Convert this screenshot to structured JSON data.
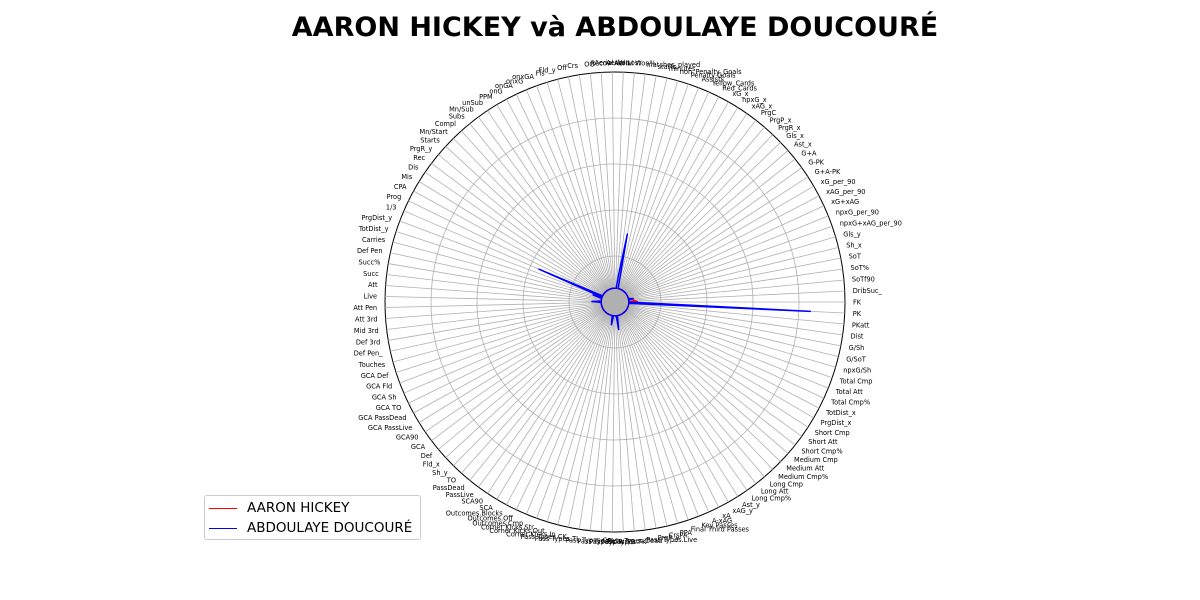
{
  "chart_data": {
    "type": "radar",
    "title": "AARON HICKEY và ABDOULAYE DOUCOURÉ",
    "legend_position": "lower-left",
    "grid": true,
    "rlim": [
      0,
      1
    ],
    "axes": [
      "FK",
      "DribSuc_",
      "SoTf90",
      "SoT%",
      "SoT",
      "Sh_x",
      "Gls_y",
      "npxG+xAG_per_90",
      "npxG_per_90",
      "xG+xAG",
      "xAG_per_90",
      "xG_per_90",
      "G+A-PK",
      "G-PK",
      "G+A",
      "Ast_x",
      "Gls_x",
      "PrgR_x",
      "PrgP_x",
      "PrgC",
      "xAG_x",
      "npxG_x",
      "xG_x",
      "Red_Cards",
      "Yellow_Cards",
      "Assists",
      "Penalty Goals",
      "non_Penalty_Goals",
      "minutes",
      "starts",
      "matches_played",
      "Aerial Won%",
      "Aerial Lost",
      "Aerial Won",
      "Recov",
      "OG",
      "Crs",
      "Off",
      "Fld_y",
      "Fls",
      "onxGA",
      "onxG",
      "onGA",
      "onG",
      "PPM",
      "unSub",
      "Mn/Sub",
      "Subs",
      "Compl",
      "Mn/Start",
      "Starts",
      "PrgR_y",
      "Rec",
      "Dis",
      "Mis",
      "CPA",
      "Prog",
      "1/3",
      "PrgDist_y",
      "TotDist_y",
      "Carries",
      "Def Pen",
      "Succ%",
      "Succ",
      "Att",
      "Live",
      "Att Pen",
      "Att 3rd",
      "Mid 3rd",
      "Def 3rd",
      "Def Pen_",
      "Touches",
      "GCA Def",
      "GCA Fld",
      "GCA Sh",
      "GCA TO",
      "GCA PassDead",
      "GCA PassLive",
      "GCA90",
      "GCA",
      "Def",
      "Fld_x",
      "Sh_y",
      "TO",
      "PassDead",
      "PassLive",
      "SCA90",
      "SCA",
      "Outcomes.Blocks",
      "Outcomes.Off",
      "Outcomes.Cmp",
      "Corner Kicks.Str",
      "Corner Kicks.Out",
      "Corner Kicks.In",
      "Pass Types.CK",
      "Pass Types.TI",
      "Pass Types.Crs",
      "Pass Types.Sw",
      "Pass Types.TB",
      "Pass Types.FK",
      "Pass Types.Dead",
      "Pass Types.Live",
      "PrgP_y",
      "CrsPA",
      "PPA",
      "Final Third Passes",
      "Key Passes",
      "A-xAG",
      "xA",
      "xAG_y",
      "Ast_y",
      "Long Cmp%",
      "Long Att",
      "Long Cmp",
      "Medium Cmp%",
      "Medium Att",
      "Medium Cmp",
      "Short Cmp%",
      "Short Att",
      "Short Cmp",
      "PrgDist_x",
      "TotDist_x",
      "Total Cmp%",
      "Total Att",
      "Total Cmp",
      "npxG/Sh",
      "G/SoT",
      "G/Sh",
      "Dist",
      "PKatt",
      "PK"
    ],
    "series": [
      {
        "name": "AARON HICKEY",
        "color": "#ff0000",
        "values": [
          0.1,
          0.06,
          0.06,
          0.06,
          0.06,
          0.06,
          0.06,
          0.06,
          0.06,
          0.06,
          0.06,
          0.06,
          0.06,
          0.06,
          0.06,
          0.06,
          0.06,
          0.06,
          0.06,
          0.06,
          0.06,
          0.06,
          0.06,
          0.06,
          0.06,
          0.06,
          0.06,
          0.06,
          0.06,
          0.06,
          0.06,
          0.06,
          0.06,
          0.06,
          0.06,
          0.06,
          0.06,
          0.06,
          0.06,
          0.06,
          0.06,
          0.06,
          0.06,
          0.06,
          0.06,
          0.06,
          0.06,
          0.06,
          0.06,
          0.06,
          0.06,
          0.06,
          0.06,
          0.06,
          0.06,
          0.06,
          0.06,
          0.06,
          0.09,
          0.09,
          0.06,
          0.06,
          0.06,
          0.06,
          0.06,
          0.06,
          0.06,
          0.06,
          0.06,
          0.06,
          0.06,
          0.06,
          0.06,
          0.06,
          0.06,
          0.06,
          0.06,
          0.06,
          0.06,
          0.06,
          0.06,
          0.06,
          0.06,
          0.06,
          0.06,
          0.06,
          0.06,
          0.06,
          0.06,
          0.06,
          0.06,
          0.06,
          0.06,
          0.06,
          0.06,
          0.06,
          0.06,
          0.06,
          0.06,
          0.06,
          0.06,
          0.06,
          0.06,
          0.06,
          0.06,
          0.06,
          0.06,
          0.06,
          0.06,
          0.06,
          0.06,
          0.06,
          0.06,
          0.06,
          0.06,
          0.06,
          0.06,
          0.06,
          0.06,
          0.06,
          0.06,
          0.06,
          0.06,
          0.06,
          0.06,
          0.06,
          0.06,
          0.06,
          0.06,
          0.06,
          0.06,
          0.06,
          0.06,
          0.06,
          0.06,
          0.06,
          0.06,
          0.06
        ]
      },
      {
        "name": "ABDOULAYE DOUCOURÉ",
        "color": "#0000ff",
        "values": [
          0.06,
          0.06,
          0.06,
          0.06,
          0.06,
          0.06,
          0.06,
          0.06,
          0.06,
          0.06,
          0.06,
          0.06,
          0.06,
          0.06,
          0.06,
          0.06,
          0.06,
          0.06,
          0.06,
          0.06,
          0.06,
          0.06,
          0.06,
          0.06,
          0.06,
          0.06,
          0.06,
          0.06,
          0.06,
          0.3,
          0.12,
          0.06,
          0.06,
          0.06,
          0.06,
          0.06,
          0.06,
          0.06,
          0.06,
          0.06,
          0.06,
          0.06,
          0.06,
          0.06,
          0.06,
          0.06,
          0.06,
          0.06,
          0.06,
          0.06,
          0.06,
          0.06,
          0.06,
          0.06,
          0.06,
          0.06,
          0.06,
          0.36,
          0.06,
          0.1,
          0.06,
          0.06,
          0.06,
          0.06,
          0.06,
          0.1,
          0.06,
          0.06,
          0.06,
          0.06,
          0.06,
          0.06,
          0.06,
          0.06,
          0.06,
          0.06,
          0.06,
          0.06,
          0.06,
          0.06,
          0.06,
          0.06,
          0.06,
          0.06,
          0.06,
          0.06,
          0.06,
          0.06,
          0.06,
          0.06,
          0.06,
          0.06,
          0.06,
          0.06,
          0.06,
          0.1,
          0.06,
          0.06,
          0.06,
          0.06,
          0.06,
          0.12,
          0.06,
          0.06,
          0.06,
          0.06,
          0.06,
          0.06,
          0.06,
          0.06,
          0.06,
          0.06,
          0.06,
          0.06,
          0.06,
          0.06,
          0.06,
          0.06,
          0.06,
          0.06,
          0.06,
          0.06,
          0.06,
          0.06,
          0.06,
          0.06,
          0.06,
          0.06,
          0.06,
          0.06,
          0.85,
          0.06,
          0.06,
          0.06,
          0.06,
          0.08,
          0.06
        ]
      }
    ]
  }
}
